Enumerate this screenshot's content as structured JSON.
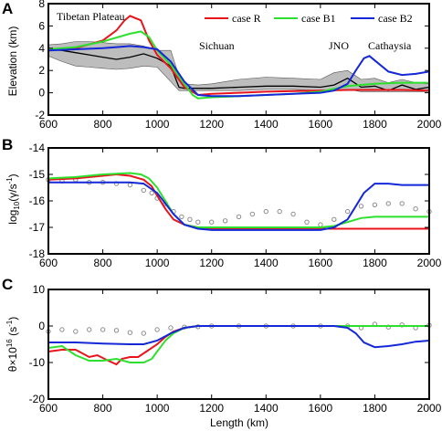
{
  "panel_letters": [
    "A",
    "B",
    "C"
  ],
  "x_axis_label": "Length (km)",
  "colors": {
    "case_r": "#e8141c",
    "case_b1": "#2ee02e",
    "case_b2": "#1428d8",
    "topo": "#000000",
    "topo_band": "#bdbdbd",
    "observed": "#8c8c8c"
  },
  "chart_data": [
    {
      "panel": "A",
      "type": "line",
      "ylabel": "Elevation (km)",
      "xlim": [
        600,
        2000
      ],
      "ylim": [
        -2,
        8
      ],
      "xticks": [
        600,
        800,
        1000,
        1200,
        1400,
        1600,
        1800,
        2000
      ],
      "yticks": [
        -2,
        0,
        2,
        4,
        6,
        8
      ],
      "legend_placement": "top-right",
      "annotations": [
        "Tibetan Plateau",
        "Sichuan",
        "JNO",
        "Cathaysia"
      ],
      "observed_topography": {
        "x": [
          600,
          650,
          700,
          750,
          800,
          850,
          900,
          950,
          1000,
          1050,
          1080,
          1100,
          1150,
          1200,
          1300,
          1400,
          1500,
          1600,
          1650,
          1700,
          1750,
          1800,
          1850,
          1900,
          1950,
          2000
        ],
        "mean": [
          3.9,
          3.8,
          3.6,
          3.4,
          3.2,
          3.0,
          3.2,
          3.5,
          3.1,
          2.4,
          0.5,
          0.4,
          0.4,
          0.4,
          0.5,
          0.6,
          0.6,
          0.5,
          0.7,
          1.3,
          0.5,
          0.6,
          0.2,
          0.7,
          0.3,
          0.5
        ],
        "max": [
          4.3,
          4.4,
          4.6,
          4.6,
          4.5,
          4.4,
          4.4,
          4.2,
          3.8,
          3.8,
          1.5,
          0.8,
          0.7,
          0.8,
          1.2,
          1.4,
          1.3,
          1.2,
          1.8,
          2.0,
          1.2,
          1.3,
          0.9,
          1.2,
          0.9,
          0.8
        ],
        "min": [
          3.3,
          2.8,
          2.4,
          2.3,
          2.2,
          2.1,
          2.2,
          2.4,
          2.3,
          1.0,
          0.2,
          0.2,
          0.2,
          0.2,
          0.2,
          0.3,
          0.3,
          0.2,
          0.2,
          0.3,
          0.1,
          0.1,
          0.1,
          0.1,
          0.1,
          0.1
        ]
      },
      "series": [
        {
          "name": "case R",
          "color": "#e8141c",
          "x": [
            600,
            700,
            800,
            850,
            880,
            900,
            940,
            970,
            1000,
            1050,
            1100,
            1150,
            1200,
            1300,
            1400,
            1500,
            1600,
            1700,
            1800,
            1900,
            2000
          ],
          "values": [
            3.9,
            4.0,
            4.7,
            5.6,
            6.5,
            6.9,
            6.5,
            4.7,
            3.4,
            2.2,
            0.5,
            -0.2,
            -0.1,
            0.0,
            0.1,
            0.15,
            0.2,
            0.25,
            0.25,
            0.25,
            0.2
          ]
        },
        {
          "name": "case B1",
          "color": "#2ee02e",
          "x": [
            600,
            700,
            800,
            900,
            940,
            970,
            1000,
            1050,
            1100,
            1130,
            1150,
            1200,
            1300,
            1400,
            1500,
            1600,
            1700,
            1800,
            1900,
            2000
          ],
          "values": [
            3.9,
            4.1,
            4.6,
            5.3,
            5.5,
            5.0,
            3.8,
            2.5,
            0.8,
            -0.2,
            -0.5,
            -0.4,
            -0.3,
            -0.2,
            -0.1,
            0.1,
            0.6,
            0.8,
            0.9,
            0.9
          ]
        },
        {
          "name": "case B2",
          "color": "#1428d8",
          "x": [
            600,
            700,
            800,
            850,
            900,
            950,
            1000,
            1050,
            1100,
            1150,
            1200,
            1300,
            1400,
            1500,
            1600,
            1650,
            1700,
            1730,
            1760,
            1780,
            1800,
            1850,
            1900,
            1950,
            2000
          ],
          "values": [
            3.8,
            3.9,
            4.0,
            4.1,
            4.2,
            4.1,
            3.9,
            2.8,
            1.0,
            -0.2,
            -0.3,
            -0.3,
            -0.2,
            -0.1,
            0.0,
            0.2,
            0.8,
            2.0,
            3.1,
            3.3,
            2.9,
            1.9,
            1.6,
            1.7,
            1.9
          ]
        }
      ]
    },
    {
      "panel": "B",
      "type": "line",
      "ylabel": "log10(γ/s⁻¹)",
      "xlim": [
        600,
        2000
      ],
      "ylim": [
        -18,
        -14
      ],
      "xticks": [
        600,
        800,
        1000,
        1200,
        1400,
        1600,
        1800,
        2000
      ],
      "yticks": [
        -18,
        -17,
        -16,
        -15,
        -14
      ],
      "observed_strain_rate": {
        "x": [
          600,
          650,
          700,
          750,
          800,
          850,
          900,
          950,
          980,
          1000,
          1030,
          1060,
          1090,
          1120,
          1150,
          1200,
          1250,
          1300,
          1350,
          1400,
          1450,
          1500,
          1550,
          1600,
          1650,
          1700,
          1750,
          1800,
          1850,
          1900,
          1950,
          2000
        ],
        "values": [
          -15.2,
          -15.25,
          -15.2,
          -15.3,
          -15.3,
          -15.35,
          -15.4,
          -15.6,
          -15.7,
          -15.9,
          -16.1,
          -16.4,
          -16.6,
          -16.7,
          -16.8,
          -16.8,
          -16.75,
          -16.6,
          -16.5,
          -16.4,
          -16.4,
          -16.5,
          -16.8,
          -16.9,
          -16.7,
          -16.4,
          -16.2,
          -16.15,
          -16.1,
          -16.1,
          -16.3,
          -16.4
        ]
      },
      "series": [
        {
          "name": "case R",
          "color": "#e8141c",
          "x": [
            600,
            700,
            800,
            850,
            900,
            950,
            980,
            1000,
            1030,
            1060,
            1100,
            1150,
            1200,
            1400,
            1600,
            1800,
            2000
          ],
          "values": [
            -15.2,
            -15.15,
            -15.05,
            -15.0,
            -15.05,
            -15.2,
            -15.45,
            -15.8,
            -16.3,
            -16.7,
            -16.9,
            -17.0,
            -17.05,
            -17.05,
            -17.05,
            -17.05,
            -17.05
          ]
        },
        {
          "name": "case B1",
          "color": "#2ee02e",
          "x": [
            600,
            700,
            800,
            900,
            940,
            970,
            1000,
            1030,
            1060,
            1100,
            1150,
            1200,
            1400,
            1600,
            1650,
            1700,
            1750,
            1800,
            1900,
            2000
          ],
          "values": [
            -15.15,
            -15.1,
            -15.0,
            -14.95,
            -15.0,
            -15.15,
            -15.5,
            -16.0,
            -16.5,
            -16.9,
            -17.0,
            -17.0,
            -17.0,
            -17.0,
            -16.95,
            -16.8,
            -16.65,
            -16.6,
            -16.6,
            -16.6
          ]
        },
        {
          "name": "case B2",
          "color": "#1428d8",
          "x": [
            600,
            700,
            800,
            900,
            950,
            1000,
            1030,
            1060,
            1100,
            1150,
            1200,
            1400,
            1600,
            1650,
            1700,
            1730,
            1760,
            1800,
            1850,
            1900,
            2000
          ],
          "values": [
            -15.3,
            -15.3,
            -15.3,
            -15.3,
            -15.35,
            -15.7,
            -16.1,
            -16.5,
            -16.9,
            -17.05,
            -17.1,
            -17.1,
            -17.1,
            -17.0,
            -16.7,
            -16.2,
            -15.7,
            -15.35,
            -15.35,
            -15.4,
            -15.4
          ]
        }
      ]
    },
    {
      "panel": "C",
      "type": "line",
      "ylabel": "θ×10¹⁶ (s⁻¹)",
      "xlim": [
        600,
        2000
      ],
      "ylim": [
        -20,
        10
      ],
      "xticks": [
        600,
        800,
        1000,
        1200,
        1400,
        1600,
        1800,
        2000
      ],
      "yticks": [
        -20,
        -10,
        0,
        10
      ],
      "observed_rotation": {
        "x": [
          600,
          650,
          700,
          750,
          800,
          850,
          900,
          950,
          1000,
          1050,
          1100,
          1150,
          1200,
          1300,
          1400,
          1500,
          1600,
          1700,
          1750,
          1800,
          1850,
          1900,
          1950,
          2000
        ],
        "values": [
          -1.5,
          -1.0,
          -1.5,
          -1.0,
          -1.0,
          -1.2,
          -1.8,
          -2.0,
          -1.0,
          -0.5,
          -0.3,
          -0.2,
          0.0,
          0.0,
          0.0,
          0.0,
          0.0,
          0.0,
          -0.5,
          0.5,
          -0.3,
          0.3,
          -0.5,
          0.2
        ]
      },
      "series": [
        {
          "name": "case R",
          "color": "#e8141c",
          "x": [
            600,
            650,
            700,
            750,
            780,
            820,
            850,
            870,
            900,
            930,
            960,
            1000,
            1030,
            1060,
            1100,
            1150,
            1200,
            1400,
            1600,
            1800,
            2000
          ],
          "values": [
            -7.0,
            -6.5,
            -6.5,
            -8.5,
            -8.0,
            -9.5,
            -10.5,
            -9.0,
            -8.5,
            -8.5,
            -7.0,
            -5.0,
            -3.0,
            -1.5,
            -0.5,
            0.0,
            0.0,
            0.0,
            0.0,
            0.0,
            0.0
          ]
        },
        {
          "name": "case B1",
          "color": "#2ee02e",
          "x": [
            600,
            650,
            700,
            750,
            800,
            850,
            900,
            950,
            980,
            1000,
            1030,
            1060,
            1100,
            1150,
            1200,
            1400,
            1600,
            1800,
            2000
          ],
          "values": [
            -6.0,
            -5.5,
            -8.0,
            -9.5,
            -9.5,
            -9.0,
            -10.0,
            -10.0,
            -9.0,
            -7.0,
            -4.0,
            -2.0,
            -0.5,
            0.0,
            0.0,
            0.0,
            0.0,
            0.0,
            0.0
          ]
        },
        {
          "name": "case B2",
          "color": "#1428d8",
          "x": [
            600,
            700,
            800,
            900,
            950,
            1000,
            1050,
            1100,
            1150,
            1200,
            1400,
            1600,
            1650,
            1700,
            1730,
            1760,
            1800,
            1850,
            1900,
            1950,
            2000
          ],
          "values": [
            -4.5,
            -4.5,
            -4.8,
            -5.0,
            -5.0,
            -4.0,
            -2.0,
            -0.5,
            0.0,
            0.0,
            0.0,
            0.0,
            0.0,
            -0.5,
            -2.0,
            -4.5,
            -5.8,
            -5.5,
            -5.0,
            -4.3,
            -4.0
          ]
        }
      ]
    }
  ]
}
